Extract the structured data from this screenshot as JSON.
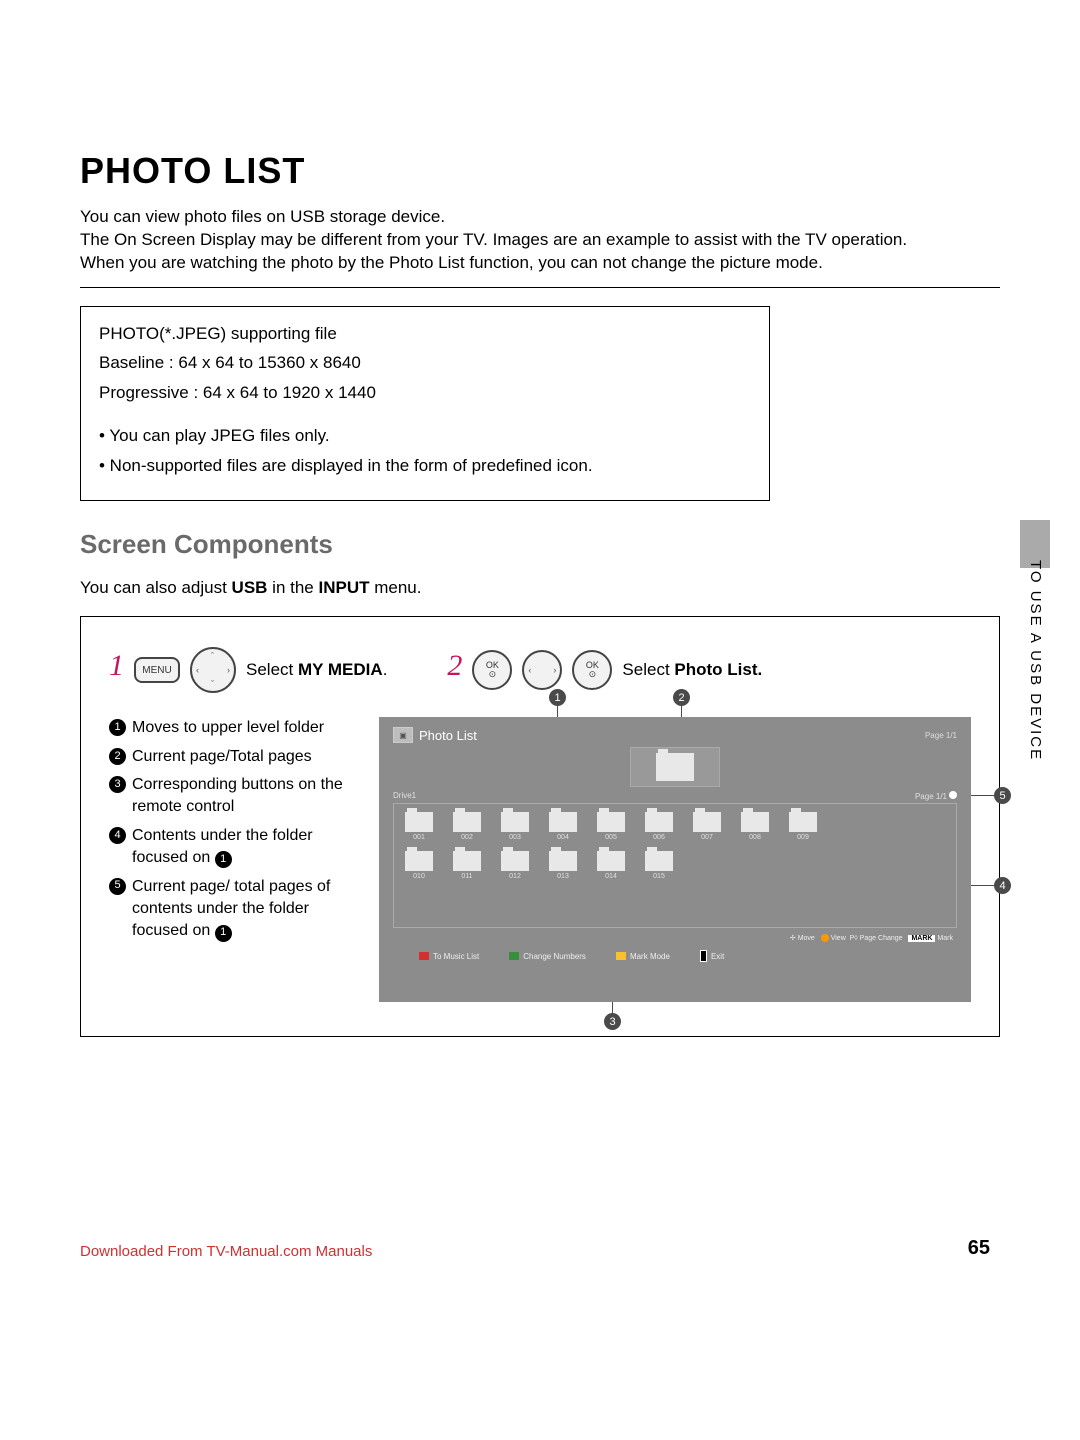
{
  "title": "PHOTO LIST",
  "intro": [
    "You can view photo files on USB storage device.",
    "The On Screen Display may be different from your TV. Images are an example to assist with the TV operation.",
    "When you are watching the photo by the Photo List function, you can not change the picture mode."
  ],
  "spec": {
    "l1": "PHOTO(*.JPEG) supporting file",
    "l2": "Baseline : 64 x 64 to 15360 x 8640",
    "l3": "Progressive : 64 x 64 to 1920 x 1440",
    "b1": "• You can play JPEG files only.",
    "b2": "• Non-supported files are displayed in the form of predefined icon."
  },
  "h2": "Screen Components",
  "sub_pre": "You can also adjust ",
  "sub_b1": "USB",
  "sub_mid": " in the ",
  "sub_b2": "INPUT",
  "sub_post": " menu.",
  "step1_num": "1",
  "step2_num": "2",
  "btn_menu": "MENU",
  "btn_ok": "OK",
  "step1_pre": "Select ",
  "step1_b": "MY MEDIA",
  "step1_post": ".",
  "step2_pre": "Select ",
  "step2_b": "Photo List.",
  "legend": {
    "i1": "Moves to upper level folder",
    "i2": "Current page/Total pages",
    "i3": "Corresponding buttons on the remote control",
    "i4a": "Contents under the folder focused on ",
    "i5a": "Current page/ total pages of contents under the folder focused on "
  },
  "tv": {
    "title": "Photo List",
    "top_page": "Page 1/1",
    "drive": "Drive1",
    "sub_page": "Page 1/1",
    "folders1": [
      "001",
      "002",
      "003",
      "004",
      "005",
      "006",
      "007",
      "008",
      "009"
    ],
    "folders2": [
      "010",
      "011",
      "012",
      "013",
      "014",
      "015"
    ],
    "hints_move": "Move",
    "hints_view": "View",
    "hints_pc": "Page Change",
    "hints_mk": "MARK",
    "hints_mark": "Mark",
    "bb1": "To Music List",
    "bb2": "Change Numbers",
    "bb3": "Mark Mode",
    "bb4": "Exit"
  },
  "side": "TO USE A USB DEVICE",
  "pagenum": "65",
  "footer": "Downloaded From TV-Manual.com Manuals"
}
